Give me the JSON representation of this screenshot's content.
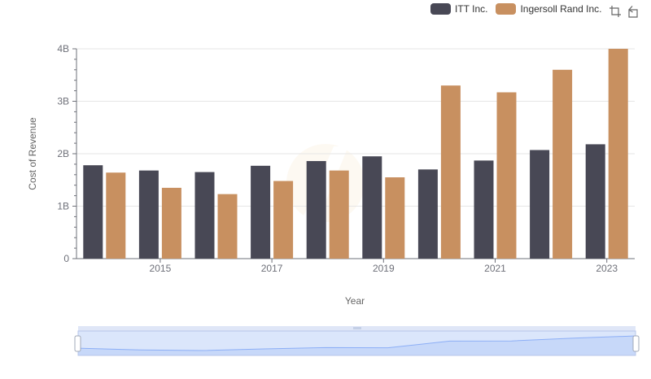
{
  "chart_data": {
    "type": "bar",
    "title": "",
    "xlabel": "Year",
    "ylabel": "Cost of Revenue",
    "categories": [
      "2014",
      "2015",
      "2016",
      "2017",
      "2018",
      "2019",
      "2020",
      "2021",
      "2022",
      "2023"
    ],
    "x_tick_labels": [
      "2015",
      "2017",
      "2019",
      "2021",
      "2023"
    ],
    "y_ticks": [
      {
        "value": 0,
        "label": "0"
      },
      {
        "value": 1000000000,
        "label": "1B"
      },
      {
        "value": 2000000000,
        "label": "2B"
      },
      {
        "value": 3000000000,
        "label": "3B"
      },
      {
        "value": 4000000000,
        "label": "4B"
      }
    ],
    "ylim": [
      0,
      4000000000
    ],
    "grid": true,
    "legend_position": "top-right",
    "series": [
      {
        "name": "ITT Inc.",
        "color": "#484855",
        "values": [
          1780000000,
          1680000000,
          1650000000,
          1770000000,
          1860000000,
          1950000000,
          1700000000,
          1870000000,
          2070000000,
          2180000000
        ]
      },
      {
        "name": "Ingersoll Rand Inc.",
        "color": "#c89060",
        "values": [
          1640000000,
          1350000000,
          1230000000,
          1480000000,
          1680000000,
          1550000000,
          3300000000,
          3170000000,
          3600000000,
          4000000000
        ]
      }
    ]
  },
  "toolbox": {
    "icons": [
      "zoom-select-icon",
      "restore-icon"
    ]
  },
  "data_zoom": {
    "range_start_percent": 0,
    "range_end_percent": 100,
    "fill_color": "#d6e2fb",
    "border_color": "#d2dbee",
    "line_color": "#8fb0f7"
  }
}
